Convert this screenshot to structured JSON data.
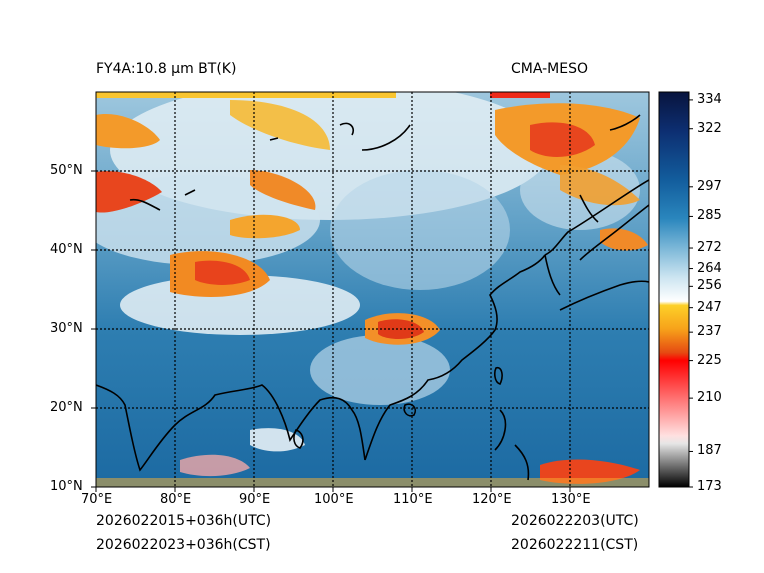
{
  "header": {
    "product_title": "FY4A:10.8 µm BT(K)",
    "source": "CMA-MESO"
  },
  "footer": {
    "init_utc": "2026022015+036h(UTC)",
    "init_cst": "2026022023+036h(CST)",
    "valid_utc": "2026022203(UTC)",
    "valid_cst": "2026022211(CST)"
  },
  "map": {
    "lon_labels": [
      "70°E",
      "80°E",
      "90°E",
      "100°E",
      "110°E",
      "120°E",
      "130°E"
    ],
    "lat_labels": [
      "50°N",
      "40°N",
      "30°N",
      "20°N",
      "10°N"
    ]
  },
  "colorbar": {
    "labels": [
      "334",
      "322",
      "297",
      "285",
      "272",
      "264",
      "256",
      "247",
      "237",
      "225",
      "210",
      "187",
      "173"
    ],
    "min_value": 173,
    "max_value": 336
  }
}
